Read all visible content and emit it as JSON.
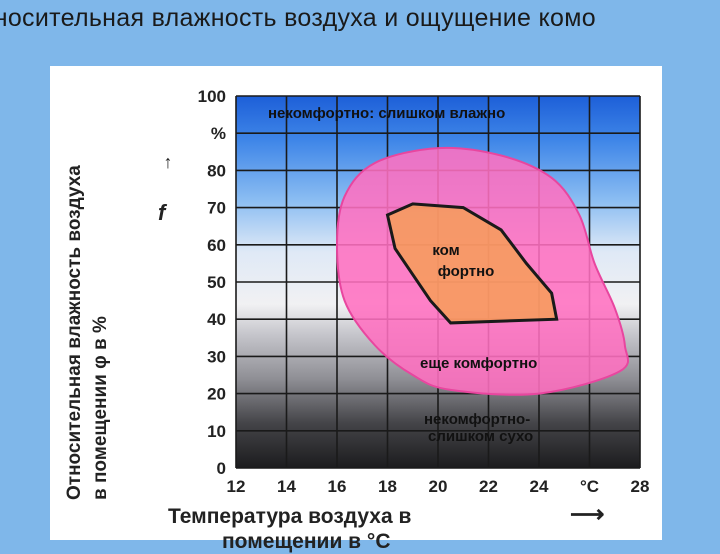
{
  "slide": {
    "title": "тносительная влажность воздуха и ощущение комо"
  },
  "chart_data": {
    "type": "area",
    "xlabel_line1": "Температура воздуха в",
    "xlabel_line2": "помещении в °С",
    "ylabel_line1": "Относительная влажность воздуха",
    "ylabel_line2": "в помещении φ в %",
    "y_symbol": "f",
    "x_unit_tick": "°C",
    "y_unit_tick": "%",
    "x_ticks": [
      "12",
      "14",
      "16",
      "18",
      "20",
      "22",
      "24",
      "28"
    ],
    "y_ticks": [
      "0",
      "10",
      "20",
      "30",
      "40",
      "50",
      "60",
      "70",
      "80",
      "100"
    ],
    "grid": true,
    "zones": [
      {
        "label": "некомфортно: слишком влажно",
        "color": "#1f5fd0"
      },
      {
        "label": "еще комфортно",
        "color": "#ff6fc0",
        "outline": [
          [
            17.5,
            82
          ],
          [
            20,
            86
          ],
          [
            22.5,
            84
          ],
          [
            24.5,
            78
          ],
          [
            25.6,
            68
          ],
          [
            26.2,
            55
          ],
          [
            27,
            43
          ],
          [
            27.4,
            33
          ],
          [
            27.2,
            26
          ],
          [
            24,
            20
          ],
          [
            20.5,
            21
          ],
          [
            19,
            25
          ],
          [
            17.5,
            33
          ],
          [
            16.3,
            45
          ],
          [
            16,
            60
          ],
          [
            16.3,
            73
          ]
        ]
      },
      {
        "label": "ком фортно",
        "color": "#f5a24a",
        "outline": [
          [
            18,
            68
          ],
          [
            19,
            71
          ],
          [
            21,
            70
          ],
          [
            22.5,
            64
          ],
          [
            23.5,
            55
          ],
          [
            24.5,
            47
          ],
          [
            24.7,
            40
          ],
          [
            20.5,
            39
          ],
          [
            19.7,
            45
          ],
          [
            19,
            52
          ],
          [
            18.3,
            59
          ]
        ]
      },
      {
        "label": "некомфортно: слишком сухо",
        "color": "#222222"
      }
    ]
  }
}
